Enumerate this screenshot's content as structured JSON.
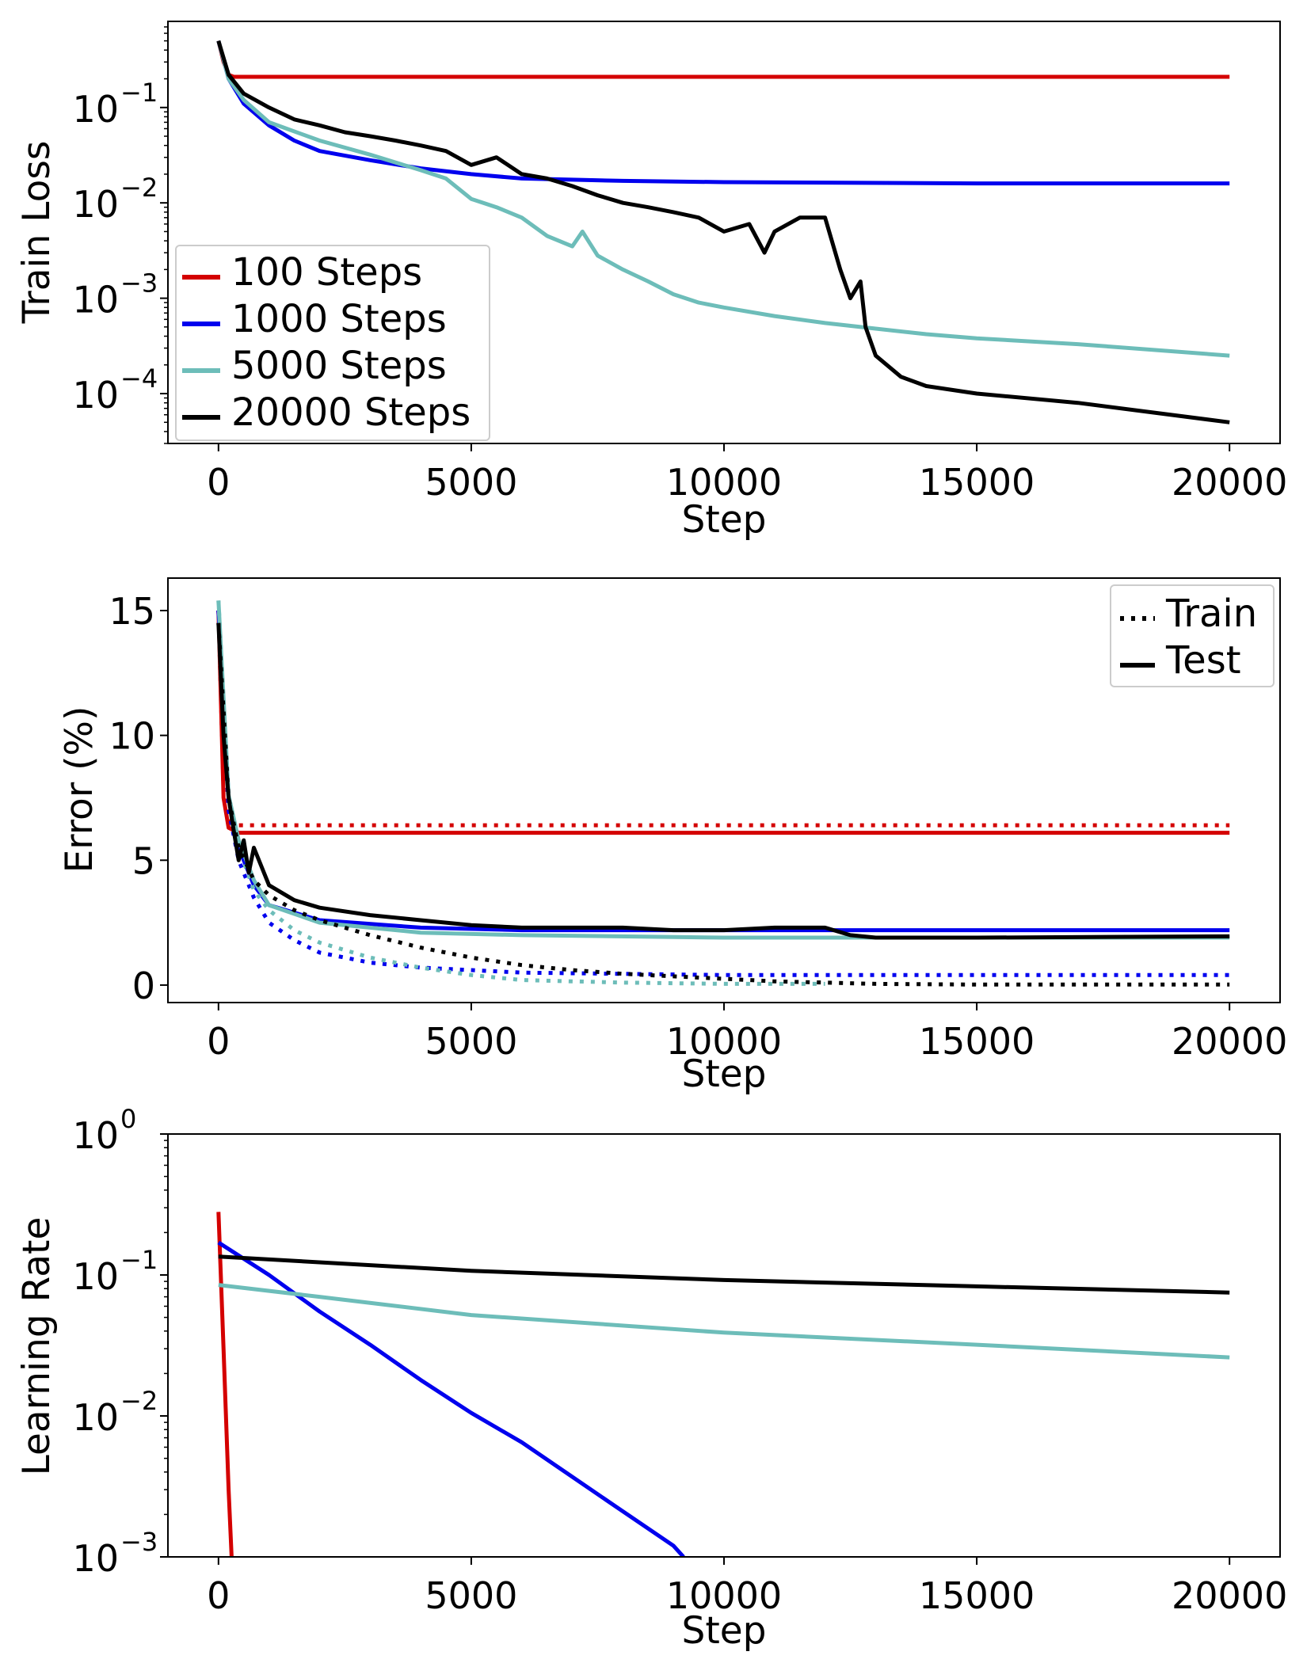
{
  "colors": {
    "r100": "#d40000",
    "r1000": "#0000ee",
    "r5000": "#6dbdb9",
    "r20000": "#000000"
  },
  "chart_data": [
    {
      "type": "line",
      "xlabel": "Step",
      "ylabel": "Train Loss",
      "yscale": "log",
      "xlim": [
        -1000,
        21000
      ],
      "ylim": [
        3e-05,
        0.8
      ],
      "xticks": [
        "0",
        "5000",
        "10000",
        "15000",
        "20000"
      ],
      "yticks": [
        {
          "value": 0.1,
          "base": "10",
          "exp": "−1"
        },
        {
          "value": 0.01,
          "base": "10",
          "exp": "−2"
        },
        {
          "value": 0.001,
          "base": "10",
          "exp": "−3"
        },
        {
          "value": 0.0001,
          "base": "10",
          "exp": "−4"
        }
      ],
      "legend": {
        "placement": "lower-left",
        "entries": [
          {
            "label": "100 Steps",
            "color_key": "r100"
          },
          {
            "label": "1000 Steps",
            "color_key": "r1000"
          },
          {
            "label": "5000 Steps",
            "color_key": "r5000"
          },
          {
            "label": "20000 Steps",
            "color_key": "r20000"
          }
        ]
      },
      "series": [
        {
          "name": "100 Steps",
          "color_key": "r100",
          "style": "solid",
          "x": [
            0,
            100,
            200,
            300,
            1000,
            5000,
            10000,
            15000,
            20000
          ],
          "y": [
            0.5,
            0.3,
            0.22,
            0.21,
            0.21,
            0.21,
            0.21,
            0.21,
            0.21
          ]
        },
        {
          "name": "1000 Steps",
          "color_key": "r1000",
          "style": "solid",
          "x": [
            0,
            200,
            500,
            1000,
            1500,
            2000,
            3000,
            4000,
            5000,
            6000,
            8000,
            10000,
            15000,
            20000
          ],
          "y": [
            0.5,
            0.2,
            0.11,
            0.065,
            0.045,
            0.035,
            0.028,
            0.023,
            0.02,
            0.018,
            0.017,
            0.0165,
            0.016,
            0.016
          ]
        },
        {
          "name": "5000 Steps",
          "color_key": "r5000",
          "style": "solid",
          "x": [
            0,
            200,
            500,
            1000,
            2000,
            3000,
            4000,
            4500,
            5000,
            5500,
            6000,
            6500,
            7000,
            7200,
            7500,
            8000,
            8500,
            9000,
            9500,
            10000,
            11000,
            12000,
            13000,
            14000,
            15000,
            17000,
            20000
          ],
          "y": [
            0.5,
            0.2,
            0.12,
            0.07,
            0.045,
            0.032,
            0.022,
            0.018,
            0.011,
            0.009,
            0.007,
            0.0045,
            0.0035,
            0.005,
            0.0028,
            0.002,
            0.0015,
            0.0011,
            0.0009,
            0.0008,
            0.00065,
            0.00055,
            0.00048,
            0.00042,
            0.00038,
            0.00033,
            0.00025
          ]
        },
        {
          "name": "20000 Steps",
          "color_key": "r20000",
          "style": "solid",
          "x": [
            0,
            200,
            500,
            1000,
            1500,
            2000,
            2500,
            3000,
            3500,
            4000,
            4500,
            5000,
            5500,
            6000,
            6500,
            7000,
            7500,
            8000,
            8500,
            9000,
            9500,
            10000,
            10500,
            10800,
            11000,
            11500,
            12000,
            12300,
            12500,
            12700,
            12800,
            13000,
            13500,
            14000,
            15000,
            17000,
            20000
          ],
          "y": [
            0.5,
            0.22,
            0.14,
            0.1,
            0.075,
            0.065,
            0.055,
            0.05,
            0.045,
            0.04,
            0.035,
            0.025,
            0.03,
            0.02,
            0.018,
            0.015,
            0.012,
            0.01,
            0.009,
            0.008,
            0.007,
            0.005,
            0.006,
            0.003,
            0.005,
            0.007,
            0.007,
            0.002,
            0.001,
            0.0015,
            0.0005,
            0.00025,
            0.00015,
            0.00012,
            0.0001,
            8e-05,
            5e-05
          ]
        }
      ]
    },
    {
      "type": "line",
      "xlabel": "Step",
      "ylabel": "Error (%)",
      "yscale": "linear",
      "xlim": [
        -1000,
        21000
      ],
      "ylim": [
        -0.7,
        16.3
      ],
      "xticks": [
        "0",
        "5000",
        "10000",
        "15000",
        "20000"
      ],
      "yticks": [
        {
          "value": 0,
          "label": "0"
        },
        {
          "value": 5,
          "label": "5"
        },
        {
          "value": 10,
          "label": "10"
        },
        {
          "value": 15,
          "label": "15"
        }
      ],
      "legend": {
        "placement": "top-right",
        "entries": [
          {
            "label": "Train",
            "style": "dotted"
          },
          {
            "label": "Test",
            "style": "solid"
          }
        ]
      },
      "series": [
        {
          "color_key": "r100",
          "style": "solid",
          "x": [
            0,
            100,
            200,
            400,
            20000
          ],
          "y": [
            15,
            7.5,
            6.3,
            6.1,
            6.1
          ]
        },
        {
          "color_key": "r100",
          "style": "dotted",
          "x": [
            0,
            100,
            200,
            400,
            20000
          ],
          "y": [
            15,
            7.8,
            6.6,
            6.4,
            6.4
          ]
        },
        {
          "color_key": "r1000",
          "style": "solid",
          "x": [
            0,
            200,
            400,
            700,
            1000,
            2000,
            4000,
            6000,
            10000,
            15000,
            20000
          ],
          "y": [
            15,
            7.5,
            5.5,
            4,
            3.2,
            2.6,
            2.3,
            2.2,
            2.2,
            2.2,
            2.2
          ]
        },
        {
          "color_key": "r1000",
          "style": "dotted",
          "x": [
            0,
            200,
            400,
            700,
            1000,
            1500,
            2000,
            3000,
            4000,
            6000,
            10000,
            15000,
            20000
          ],
          "y": [
            15,
            7,
            5,
            3.5,
            2.5,
            1.8,
            1.3,
            0.9,
            0.7,
            0.5,
            0.4,
            0.4,
            0.4
          ]
        },
        {
          "color_key": "r5000",
          "style": "solid",
          "x": [
            0,
            200,
            400,
            700,
            1000,
            2000,
            4000,
            6000,
            10000,
            15000,
            20000
          ],
          "y": [
            15.4,
            7.6,
            5.8,
            4.2,
            3.2,
            2.5,
            2.1,
            2.0,
            1.9,
            1.9,
            1.9
          ]
        },
        {
          "color_key": "r5000",
          "style": "dotted",
          "x": [
            0,
            200,
            400,
            700,
            1000,
            1500,
            2000,
            3000,
            4000,
            5000,
            6000,
            8000,
            10000,
            12000
          ],
          "y": [
            15.4,
            7.5,
            5.5,
            3.8,
            3,
            2.2,
            1.7,
            1.1,
            0.7,
            0.4,
            0.2,
            0.1,
            0.05,
            0.05
          ]
        },
        {
          "color_key": "r20000",
          "style": "solid",
          "x": [
            0,
            100,
            200,
            300,
            400,
            500,
            600,
            700,
            1000,
            1500,
            2000,
            3000,
            4000,
            5000,
            6000,
            7000,
            8000,
            9000,
            10000,
            11000,
            12000,
            12500,
            13000,
            15000,
            20000
          ],
          "y": [
            14.5,
            10,
            7.5,
            6.2,
            5,
            5.8,
            4.5,
            5.5,
            4,
            3.4,
            3.1,
            2.8,
            2.6,
            2.4,
            2.3,
            2.3,
            2.3,
            2.2,
            2.2,
            2.3,
            2.3,
            2.0,
            1.9,
            1.9,
            1.95
          ]
        },
        {
          "color_key": "r20000",
          "style": "dotted",
          "x": [
            0,
            200,
            400,
            700,
            1000,
            1500,
            2000,
            3000,
            4000,
            5000,
            6000,
            7000,
            8000,
            9000,
            10000,
            11000,
            12000,
            13000,
            15000,
            20000
          ],
          "y": [
            14.5,
            7.5,
            5.5,
            4.2,
            3.6,
            3.0,
            2.6,
            2.0,
            1.5,
            1.1,
            0.8,
            0.6,
            0.45,
            0.35,
            0.25,
            0.15,
            0.1,
            0.05,
            0.02,
            0.02
          ]
        }
      ]
    },
    {
      "type": "line",
      "xlabel": "Step",
      "ylabel": "Learning Rate",
      "yscale": "log",
      "xlim": [
        -1000,
        21000
      ],
      "ylim": [
        0.001,
        1
      ],
      "xticks": [
        "0",
        "5000",
        "10000",
        "15000",
        "20000"
      ],
      "yticks": [
        {
          "value": 1,
          "base": "10",
          "exp": "0"
        },
        {
          "value": 0.1,
          "base": "10",
          "exp": "−1"
        },
        {
          "value": 0.01,
          "base": "10",
          "exp": "−2"
        },
        {
          "value": 0.001,
          "base": "10",
          "exp": "−3"
        }
      ],
      "series": [
        {
          "color_key": "r100",
          "style": "solid",
          "x": [
            0,
            100,
            200,
            260
          ],
          "y": [
            0.28,
            0.03,
            0.003,
            0.001
          ]
        },
        {
          "color_key": "r1000",
          "style": "solid",
          "x": [
            0,
            1000,
            2000,
            3000,
            4000,
            5000,
            6000,
            7000,
            8000,
            9000,
            9200
          ],
          "y": [
            0.17,
            0.1,
            0.055,
            0.032,
            0.018,
            0.0105,
            0.0065,
            0.0037,
            0.0021,
            0.0012,
            0.001
          ]
        },
        {
          "color_key": "r5000",
          "style": "solid",
          "x": [
            0,
            2000,
            5000,
            10000,
            15000,
            20000
          ],
          "y": [
            0.085,
            0.07,
            0.052,
            0.039,
            0.032,
            0.026
          ]
        },
        {
          "color_key": "r20000",
          "style": "solid",
          "x": [
            0,
            5000,
            10000,
            15000,
            20000
          ],
          "y": [
            0.135,
            0.107,
            0.092,
            0.083,
            0.075
          ]
        }
      ]
    }
  ]
}
